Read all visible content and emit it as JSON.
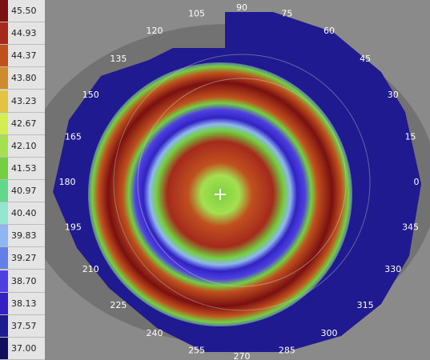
{
  "scale": [
    {
      "label": "45.50",
      "color": "#7a1010"
    },
    {
      "label": "44.93",
      "color": "#a52a1c"
    },
    {
      "label": "44.37",
      "color": "#c0501e"
    },
    {
      "label": "43.80",
      "color": "#d08c2c"
    },
    {
      "label": "43.23",
      "color": "#e2c440"
    },
    {
      "label": "42.67",
      "color": "#d4ee52"
    },
    {
      "label": "42.10",
      "color": "#a4e050"
    },
    {
      "label": "41.53",
      "color": "#74d040"
    },
    {
      "label": "40.97",
      "color": "#62d88a"
    },
    {
      "label": "40.40",
      "color": "#94e6d0"
    },
    {
      "label": "39.83",
      "color": "#8eb6f0"
    },
    {
      "label": "39.27",
      "color": "#6280e8"
    },
    {
      "label": "38.70",
      "color": "#4e40e0"
    },
    {
      "label": "38.13",
      "color": "#3222c4"
    },
    {
      "label": "37.57",
      "color": "#201a90"
    },
    {
      "label": "37.00",
      "color": "#12105c"
    }
  ],
  "angles": [
    0,
    15,
    30,
    45,
    60,
    75,
    90,
    105,
    120,
    135,
    150,
    165,
    180,
    195,
    210,
    225,
    240,
    255,
    270,
    285,
    300,
    315,
    330,
    345
  ]
}
